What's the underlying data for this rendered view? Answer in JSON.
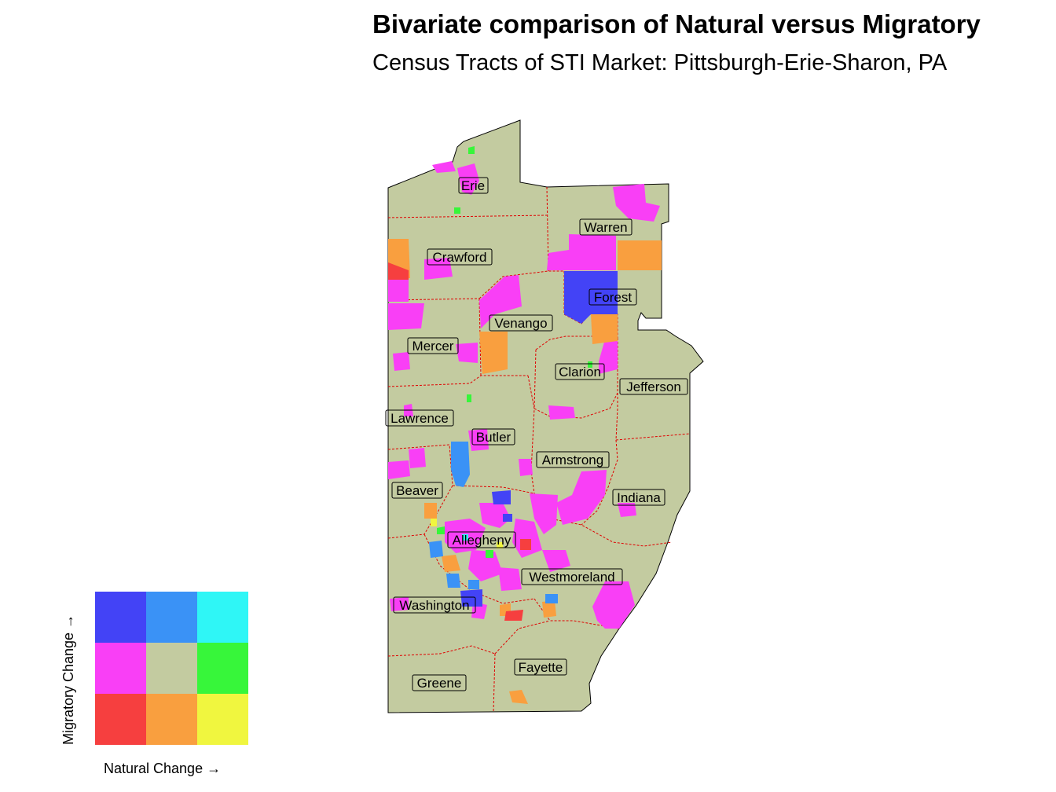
{
  "title": "Bivariate comparison of Natural versus Migratory",
  "subtitle": "Census Tracts of STI Market: Pittsburgh-Erie-Sharon, PA",
  "counties": [
    {
      "name": "Erie"
    },
    {
      "name": "Warren"
    },
    {
      "name": "Crawford"
    },
    {
      "name": "Forest"
    },
    {
      "name": "Venango"
    },
    {
      "name": "Mercer"
    },
    {
      "name": "Clarion"
    },
    {
      "name": "Jefferson"
    },
    {
      "name": "Lawrence"
    },
    {
      "name": "Butler"
    },
    {
      "name": "Armstrong"
    },
    {
      "name": "Beaver"
    },
    {
      "name": "Indiana"
    },
    {
      "name": "Allegheny"
    },
    {
      "name": "Westmoreland"
    },
    {
      "name": "Washington"
    },
    {
      "name": "Fayette"
    },
    {
      "name": "Greene"
    }
  ],
  "colors": {
    "base": "#c3cba0",
    "border": "#e00000",
    "outline": "#000000"
  },
  "legend": {
    "x_label": "Natural Change →",
    "y_label": "Migratory Change →",
    "grid": [
      [
        "#4343f6",
        "#3a92f6",
        "#2ff6f6"
      ],
      [
        "#f93ff6",
        "#c3cba0",
        "#37f63a"
      ],
      [
        "#f63f3f",
        "#f99f3f",
        "#f0f63f"
      ]
    ]
  }
}
